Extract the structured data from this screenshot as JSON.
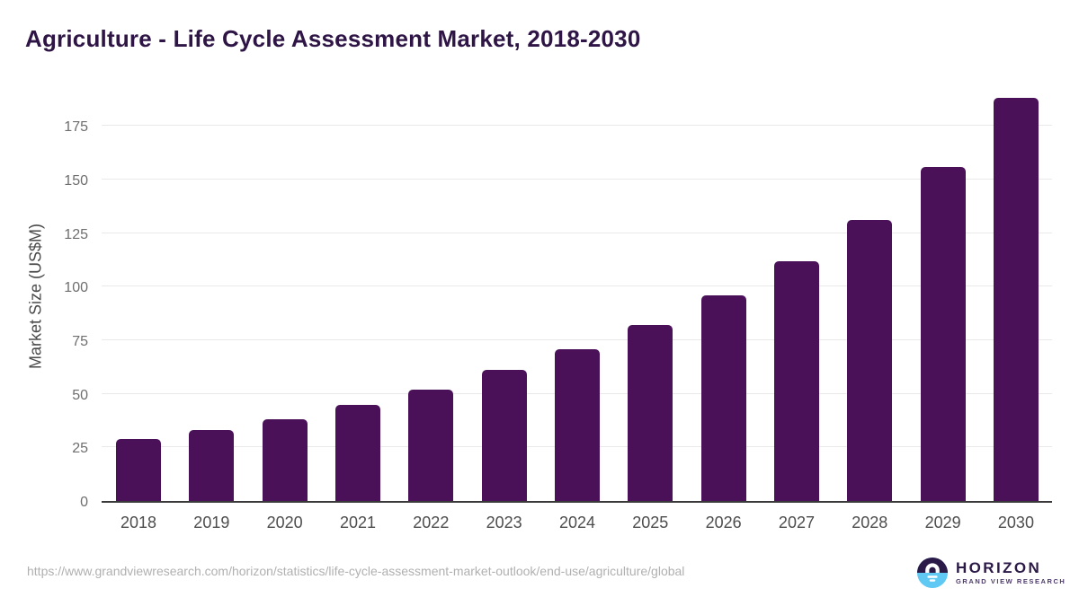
{
  "source_url": "https://www.grandviewresearch.com/horizon/statistics/life-cycle-assessment-market-outlook/end-use/agriculture/global",
  "logo": {
    "name": "HORIZON",
    "subtitle": "GRAND VIEW RESEARCH"
  },
  "colors": {
    "bar": "#4a1158",
    "title": "#2e1545",
    "gridline": "#e9e9e9",
    "axis_line": "#3a3a3a",
    "y_tick_label": "#6e6e6e",
    "x_tick_label": "#4d4d4d",
    "y_axis_title": "#4a4a4a",
    "source_url": "#b0b0b0",
    "logo_purple": "#2b1a47",
    "logo_blue": "#5fc8f3"
  },
  "chart_data": {
    "type": "bar",
    "title": "Agriculture - Life Cycle Assessment Market, 2018-2030",
    "categories": [
      "2018",
      "2019",
      "2020",
      "2021",
      "2022",
      "2023",
      "2024",
      "2025",
      "2026",
      "2027",
      "2028",
      "2029",
      "2030"
    ],
    "values": [
      29,
      33,
      38,
      45,
      52,
      61,
      71,
      82,
      96,
      112,
      131,
      156,
      188
    ],
    "xlabel": "",
    "ylabel": "Market Size (US$M)",
    "ylim": [
      0,
      188.5
    ],
    "yticks": [
      0,
      25,
      50,
      75,
      100,
      125,
      150,
      175
    ],
    "grid": "horizontal",
    "legend": "none",
    "bar_color": "#4a1158"
  }
}
